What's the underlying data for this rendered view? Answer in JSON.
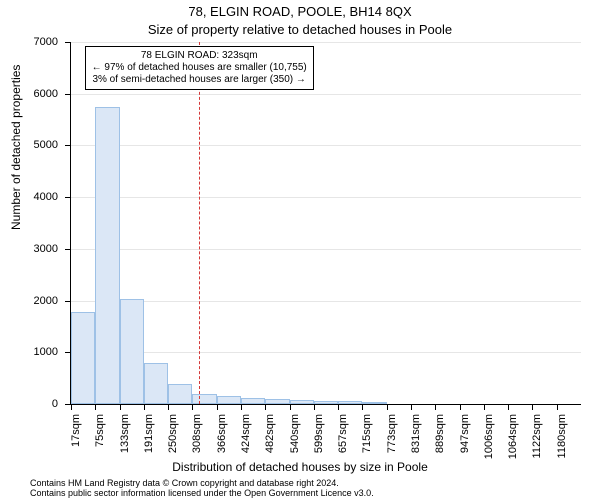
{
  "title": "78, ELGIN ROAD, POOLE, BH14 8QX",
  "subtitle": "Size of property relative to detached houses in Poole",
  "chart": {
    "type": "histogram",
    "ylabel": "Number of detached properties",
    "xlabel": "Distribution of detached houses by size in Poole",
    "ylim": [
      0,
      7000
    ],
    "ytick_step": 1000,
    "bar_fill": "#dbe7f6",
    "bar_border": "#9ec1e6",
    "background_color": "#ffffff",
    "grid_color": "#e6e6e6",
    "axis_color": "#000000",
    "refline_color": "#d43a3a",
    "refline_x": 323,
    "bin_width_sqm": 58,
    "x_start_sqm": 17,
    "bar_values": [
      1770,
      5740,
      2040,
      790,
      380,
      200,
      150,
      110,
      90,
      70,
      60,
      50,
      40,
      0,
      0,
      0,
      0,
      0,
      0,
      0,
      0
    ],
    "xtick_labels": [
      "17sqm",
      "75sqm",
      "133sqm",
      "191sqm",
      "250sqm",
      "308sqm",
      "366sqm",
      "424sqm",
      "482sqm",
      "540sqm",
      "599sqm",
      "657sqm",
      "715sqm",
      "773sqm",
      "831sqm",
      "889sqm",
      "947sqm",
      "1006sqm",
      "1064sqm",
      "1122sqm",
      "1180sqm"
    ],
    "info_box": {
      "lines": [
        "78 ELGIN ROAD: 323sqm",
        "← 97% of detached houses are smaller (10,755)",
        "3% of semi-detached houses are larger (350) →"
      ],
      "font_size": 10
    }
  },
  "footer": {
    "line1": "Contains HM Land Registry data © Crown copyright and database right 2024.",
    "line2": "Contains public sector information licensed under the Open Government Licence v3.0."
  },
  "fonts": {
    "title_size": 13,
    "axis_label_size": 12,
    "tick_label_size": 11,
    "footer_size": 9
  }
}
